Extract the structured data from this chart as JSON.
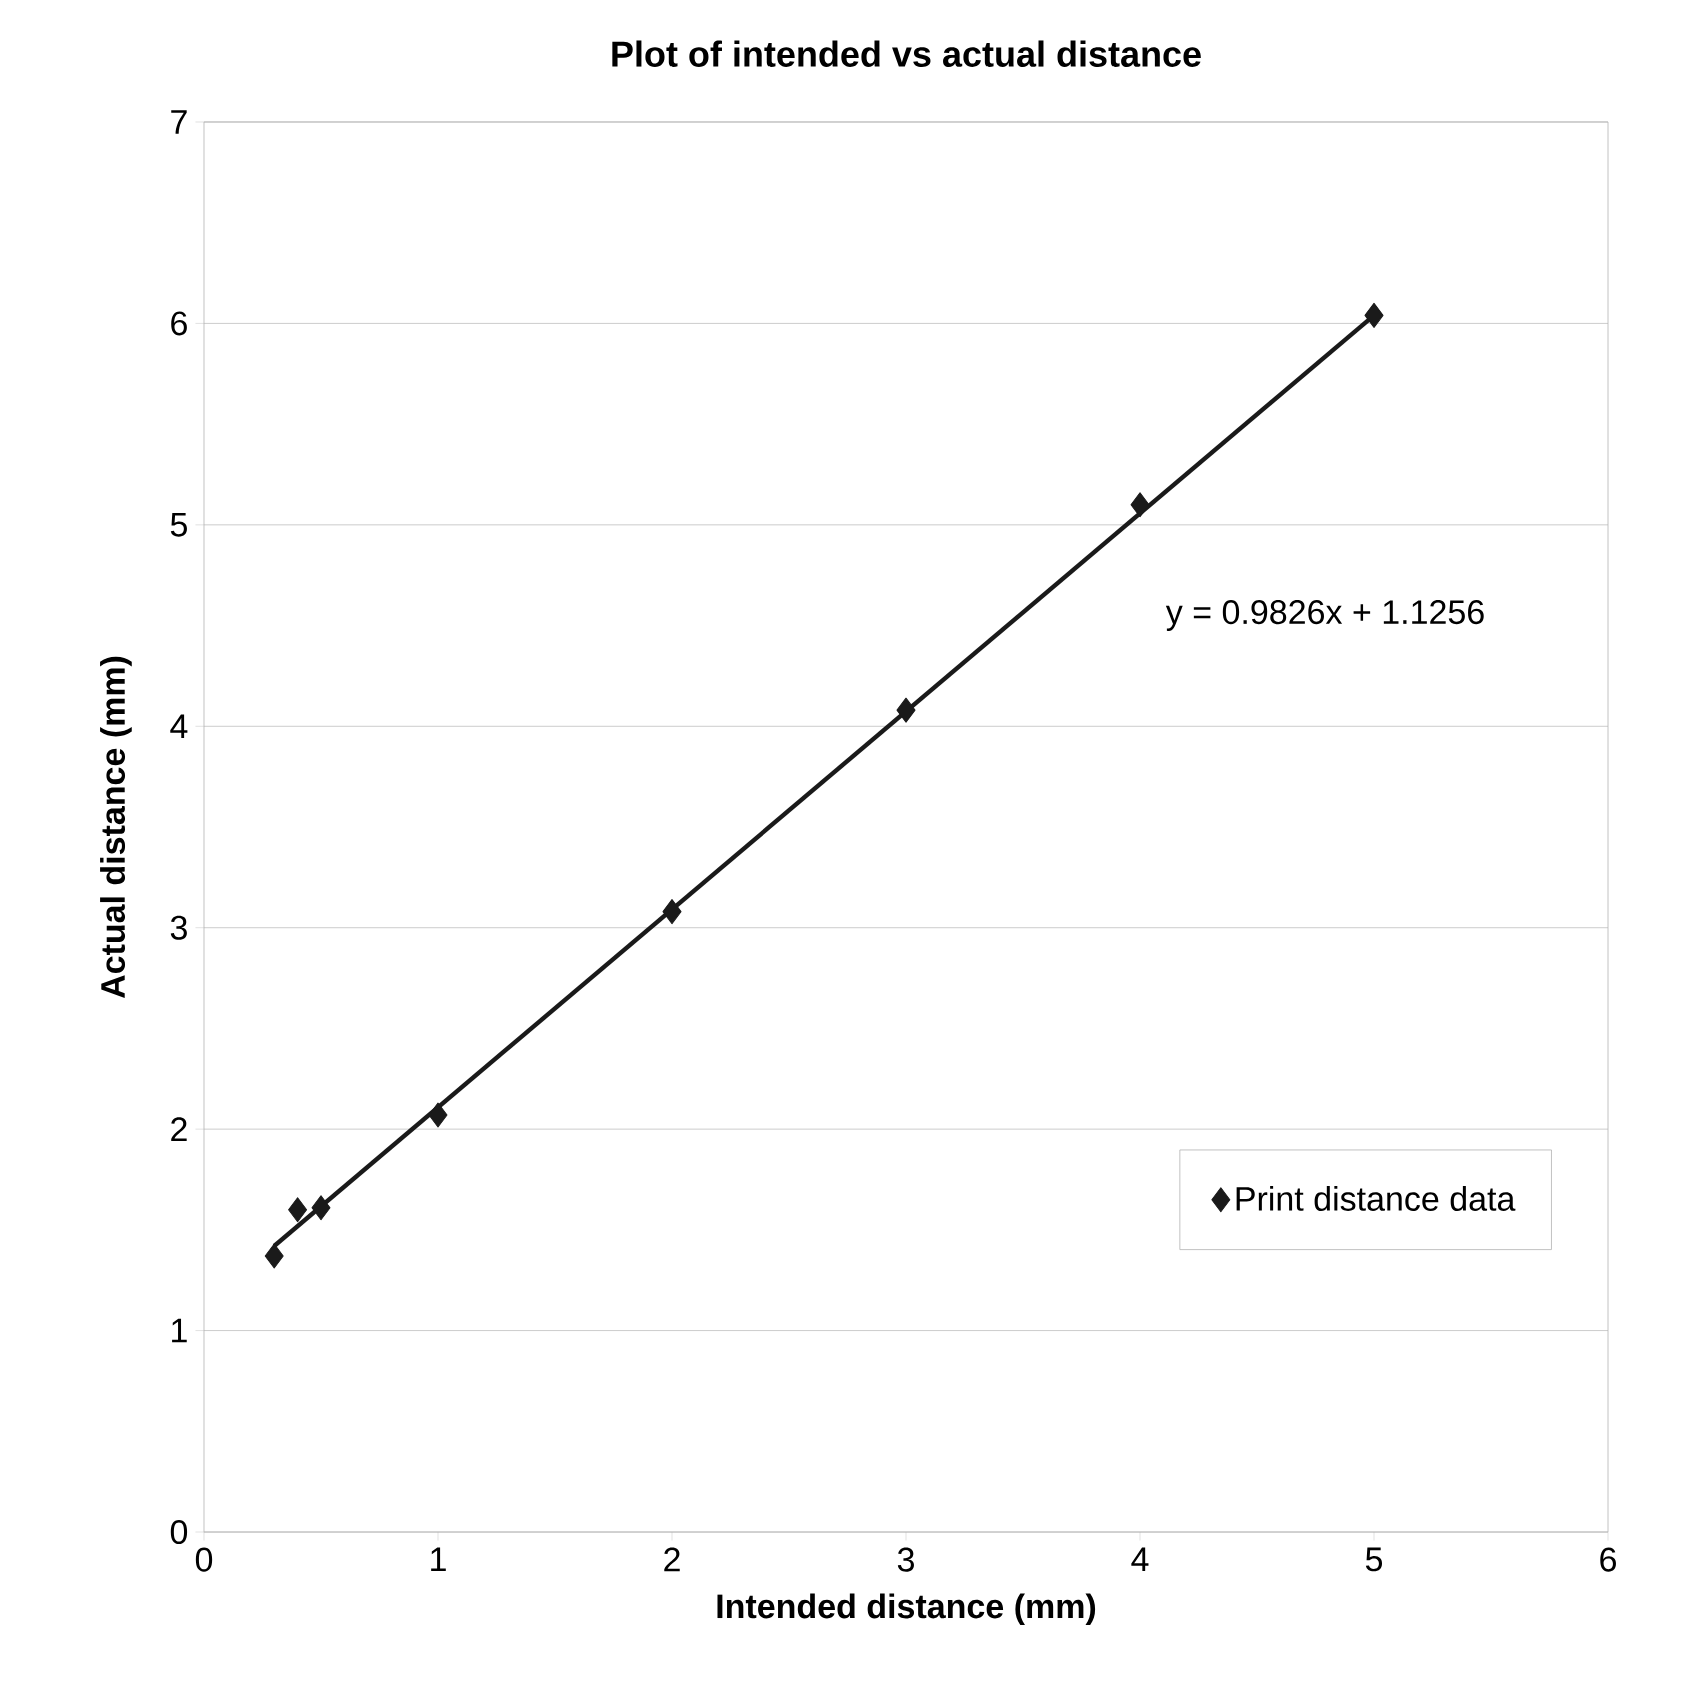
{
  "chart_data": {
    "type": "scatter",
    "title": "Plot of intended vs actual distance",
    "xlabel": "Intended distance (mm)",
    "ylabel": "Actual distance (mm)",
    "series": [
      {
        "name": "Print distance data",
        "color": "#1a1a1a",
        "marker": "diamond",
        "x": [
          0.3,
          0.4,
          0.5,
          1,
          2,
          3,
          4,
          5
        ],
        "values": [
          1.37,
          1.6,
          1.61,
          2.07,
          3.08,
          4.08,
          5.1,
          6.04
        ]
      },
      {
        "type": "line",
        "color": "#1a1a1a",
        "marker": "none",
        "x": [
          0.3,
          5
        ],
        "values": [
          1.42,
          6.04
        ]
      }
    ],
    "annotations": [
      "y = 0.9826x + 1.1256"
    ],
    "xlim": [
      0,
      6
    ],
    "ylim": [
      0,
      7
    ],
    "xticks": [
      0,
      1,
      2,
      3,
      4,
      5,
      6
    ],
    "yticks": [
      0,
      1,
      2,
      3,
      4,
      5,
      6,
      7
    ],
    "grid": "y",
    "legend": "bottom right"
  }
}
